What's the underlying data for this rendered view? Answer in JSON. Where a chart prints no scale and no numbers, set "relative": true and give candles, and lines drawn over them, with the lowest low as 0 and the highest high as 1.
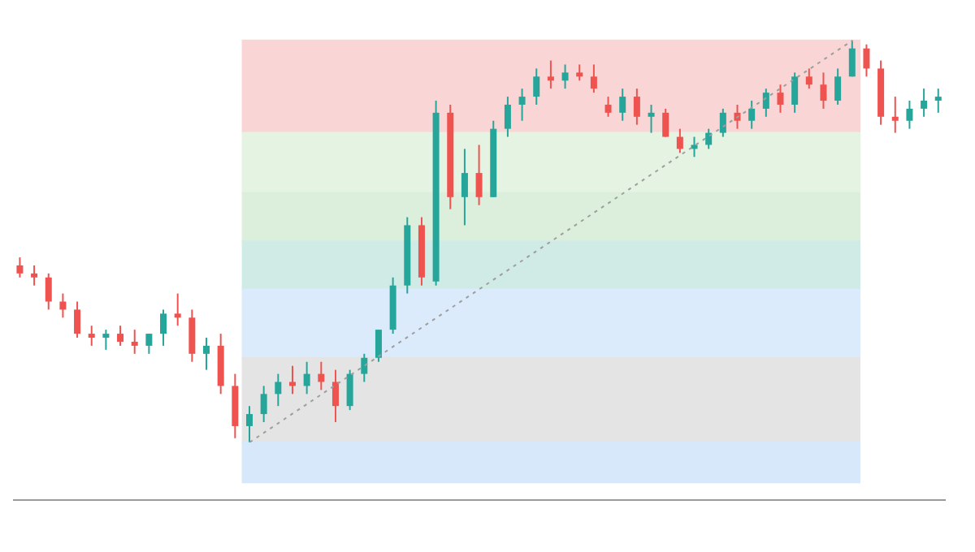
{
  "chart_data": {
    "type": "candlestick",
    "relative": true,
    "grid": false,
    "legend": false,
    "categories": [
      null,
      null,
      null,
      null,
      null,
      null,
      null,
      null,
      null,
      null,
      null,
      null,
      null,
      null,
      null,
      null,
      null,
      null,
      null,
      null,
      null,
      null,
      null,
      null,
      null,
      null,
      null,
      null,
      null,
      null,
      null,
      null,
      null,
      null,
      null,
      null,
      null,
      null,
      null,
      null,
      null,
      null,
      null,
      null,
      null,
      null,
      null,
      null,
      null,
      null,
      null,
      null,
      null,
      null,
      null,
      null,
      null,
      null,
      null,
      null,
      null,
      null,
      null,
      null,
      null
    ],
    "ohlc": [
      [
        0.44,
        0.46,
        0.41,
        0.42
      ],
      [
        0.42,
        0.44,
        0.39,
        0.41
      ],
      [
        0.41,
        0.42,
        0.33,
        0.35
      ],
      [
        0.35,
        0.37,
        0.31,
        0.33
      ],
      [
        0.33,
        0.35,
        0.26,
        0.27
      ],
      [
        0.27,
        0.29,
        0.24,
        0.26
      ],
      [
        0.26,
        0.28,
        0.23,
        0.27
      ],
      [
        0.27,
        0.29,
        0.24,
        0.25
      ],
      [
        0.25,
        0.28,
        0.22,
        0.24
      ],
      [
        0.24,
        0.27,
        0.22,
        0.27
      ],
      [
        0.27,
        0.33,
        0.24,
        0.32
      ],
      [
        0.32,
        0.37,
        0.29,
        0.31
      ],
      [
        0.31,
        0.33,
        0.2,
        0.22
      ],
      [
        0.22,
        0.26,
        0.18,
        0.24
      ],
      [
        0.24,
        0.27,
        0.12,
        0.14
      ],
      [
        0.14,
        0.17,
        0.01,
        0.04
      ],
      [
        0.04,
        0.09,
        0,
        0.07
      ],
      [
        0.07,
        0.14,
        0.05,
        0.12
      ],
      [
        0.12,
        0.17,
        0.09,
        0.15
      ],
      [
        0.15,
        0.19,
        0.12,
        0.14
      ],
      [
        0.14,
        0.2,
        0.12,
        0.17
      ],
      [
        0.17,
        0.2,
        0.13,
        0.15
      ],
      [
        0.15,
        0.18,
        0.05,
        0.09
      ],
      [
        0.09,
        0.18,
        0.08,
        0.17
      ],
      [
        0.17,
        0.22,
        0.15,
        0.21
      ],
      [
        0.21,
        0.28,
        0.2,
        0.28
      ],
      [
        0.28,
        0.41,
        0.27,
        0.39
      ],
      [
        0.39,
        0.56,
        0.37,
        0.54
      ],
      [
        0.54,
        0.56,
        0.39,
        0.41
      ],
      [
        0.4,
        0.85,
        0.39,
        0.82
      ],
      [
        0.82,
        0.84,
        0.58,
        0.61
      ],
      [
        0.61,
        0.73,
        0.54,
        0.67
      ],
      [
        0.67,
        0.74,
        0.59,
        0.61
      ],
      [
        0.61,
        0.8,
        0.61,
        0.78
      ],
      [
        0.78,
        0.86,
        0.76,
        0.84
      ],
      [
        0.84,
        0.88,
        0.8,
        0.86
      ],
      [
        0.86,
        0.93,
        0.84,
        0.91
      ],
      [
        0.91,
        0.95,
        0.88,
        0.9
      ],
      [
        0.9,
        0.94,
        0.88,
        0.92
      ],
      [
        0.92,
        0.94,
        0.9,
        0.91
      ],
      [
        0.91,
        0.94,
        0.87,
        0.88
      ],
      [
        0.84,
        0.86,
        0.81,
        0.82
      ],
      [
        0.82,
        0.88,
        0.8,
        0.86
      ],
      [
        0.86,
        0.88,
        0.79,
        0.81
      ],
      [
        0.81,
        0.84,
        0.77,
        0.82
      ],
      [
        0.82,
        0.83,
        0.76,
        0.76
      ],
      [
        0.76,
        0.78,
        0.72,
        0.73
      ],
      [
        0.73,
        0.76,
        0.71,
        0.74
      ],
      [
        0.74,
        0.78,
        0.73,
        0.77
      ],
      [
        0.77,
        0.83,
        0.76,
        0.82
      ],
      [
        0.82,
        0.84,
        0.78,
        0.8
      ],
      [
        0.8,
        0.85,
        0.78,
        0.83
      ],
      [
        0.83,
        0.88,
        0.81,
        0.87
      ],
      [
        0.87,
        0.89,
        0.82,
        0.84
      ],
      [
        0.84,
        0.92,
        0.82,
        0.91
      ],
      [
        0.91,
        0.93,
        0.88,
        0.89
      ],
      [
        0.89,
        0.92,
        0.83,
        0.85
      ],
      [
        0.85,
        0.93,
        0.84,
        0.91
      ],
      [
        0.91,
        1,
        0.91,
        0.98
      ],
      [
        0.98,
        0.99,
        0.91,
        0.93
      ],
      [
        0.93,
        0.95,
        0.79,
        0.81
      ],
      [
        0.81,
        0.86,
        0.77,
        0.8
      ],
      [
        0.8,
        0.85,
        0.78,
        0.83
      ],
      [
        0.83,
        0.88,
        0.81,
        0.85
      ],
      [
        0.85,
        0.88,
        0.82,
        0.86
      ]
    ],
    "colors": [
      "#ef5350",
      "#ef5350",
      "#ef5350",
      "#ef5350",
      "#ef5350",
      "#ef5350",
      "#26a69a",
      "#ef5350",
      "#ef5350",
      "#26a69a",
      "#26a69a",
      "#ef5350",
      "#ef5350",
      "#26a69a",
      "#ef5350",
      "#ef5350",
      "#26a69a",
      "#26a69a",
      "#26a69a",
      "#ef5350",
      "#26a69a",
      "#ef5350",
      "#ef5350",
      "#26a69a",
      "#26a69a",
      "#26a69a",
      "#26a69a",
      "#26a69a",
      "#ef5350",
      "#26a69a",
      "#ef5350",
      "#26a69a",
      "#ef5350",
      "#26a69a",
      "#26a69a",
      "#26a69a",
      "#26a69a",
      "#ef5350",
      "#26a69a",
      "#ef5350",
      "#ef5350",
      "#ef5350",
      "#26a69a",
      "#ef5350",
      "#26a69a",
      "#ef5350",
      "#ef5350",
      "#26a69a",
      "#26a69a",
      "#26a69a",
      "#ef5350",
      "#26a69a",
      "#26a69a",
      "#ef5350",
      "#26a69a",
      "#ef5350",
      "#ef5350",
      "#26a69a",
      "#26a69a",
      "#ef5350",
      "#ef5350",
      "#ef5350",
      "#26a69a",
      "#26a69a",
      "#26a69a"
    ],
    "series": [
      {
        "type": "line",
        "color": "#9e9e9e",
        "line_style": "dotted",
        "values": [
          null,
          null,
          null,
          null,
          null,
          null,
          null,
          null,
          null,
          null,
          null,
          null,
          null,
          null,
          null,
          null,
          0,
          null,
          null,
          null,
          null,
          null,
          null,
          null,
          null,
          null,
          null,
          null,
          null,
          null,
          null,
          null,
          null,
          null,
          null,
          null,
          null,
          null,
          null,
          null,
          null,
          null,
          null,
          null,
          null,
          null,
          null,
          null,
          null,
          null,
          null,
          null,
          null,
          null,
          null,
          null,
          null,
          null,
          1,
          null,
          null,
          null,
          null,
          null,
          null
        ]
      }
    ],
    "bands": [
      {
        "axis": "y",
        "from": 0.77,
        "to": 1.0,
        "color": "#f9d5d5"
      },
      {
        "axis": "y",
        "from": 0.62,
        "to": 0.77,
        "color": "#e5f3e3"
      },
      {
        "axis": "y",
        "from": 0.5,
        "to": 0.62,
        "color": "#dcefdc"
      },
      {
        "axis": "y",
        "from": 0.38,
        "to": 0.5,
        "color": "#d0ebe6"
      },
      {
        "axis": "y",
        "from": 0.21,
        "to": 0.38,
        "color": "#dcebfb"
      },
      {
        "axis": "y",
        "from": 0,
        "to": 0.21,
        "color": "#e4e4e4"
      },
      {
        "axis": "y",
        "from": -0.1,
        "to": 0,
        "color": "#d8e8fb"
      }
    ]
  }
}
